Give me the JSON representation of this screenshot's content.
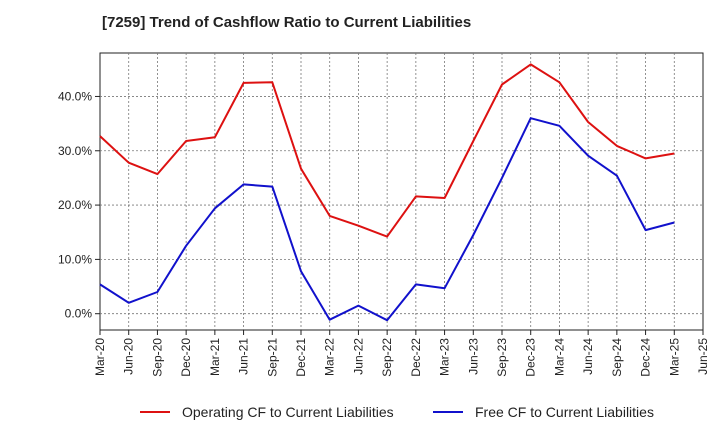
{
  "chart_data": {
    "type": "line",
    "title": "[7259]  Trend of Cashflow Ratio to Current Liabilities",
    "xlabel": "",
    "ylabel": "",
    "x": [
      "Mar-20",
      "Jun-20",
      "Sep-20",
      "Dec-20",
      "Mar-21",
      "Jun-21",
      "Sep-21",
      "Dec-21",
      "Mar-22",
      "Jun-22",
      "Sep-22",
      "Dec-22",
      "Mar-23",
      "Jun-23",
      "Sep-23",
      "Dec-23",
      "Mar-24",
      "Jun-24",
      "Sep-24",
      "Dec-24",
      "Mar-25",
      "Jun-25"
    ],
    "ylim": [
      -3,
      48
    ],
    "yticks": [
      0,
      10,
      20,
      30,
      40
    ],
    "ytick_labels": [
      "0.0%",
      "10.0%",
      "20.0%",
      "30.0%",
      "40.0%"
    ],
    "grid": true,
    "legend_position": "bottom",
    "series": [
      {
        "name": "Operating CF to Current Liabilities",
        "color": "#dd1111",
        "values": [
          32.7,
          27.8,
          25.7,
          31.8,
          32.5,
          42.5,
          42.6,
          26.7,
          18.0,
          16.2,
          14.2,
          21.6,
          21.3,
          31.8,
          42.2,
          45.9,
          42.6,
          35.3,
          30.9,
          28.6,
          29.5,
          null
        ]
      },
      {
        "name": "Free CF to Current Liabilities",
        "color": "#1111cc",
        "values": [
          5.4,
          2.0,
          4.0,
          12.5,
          19.4,
          23.8,
          23.4,
          7.8,
          -1.1,
          1.5,
          -1.2,
          5.4,
          4.7,
          14.5,
          25.0,
          36.0,
          34.6,
          29.1,
          25.4,
          15.4,
          16.8,
          null
        ]
      }
    ]
  }
}
